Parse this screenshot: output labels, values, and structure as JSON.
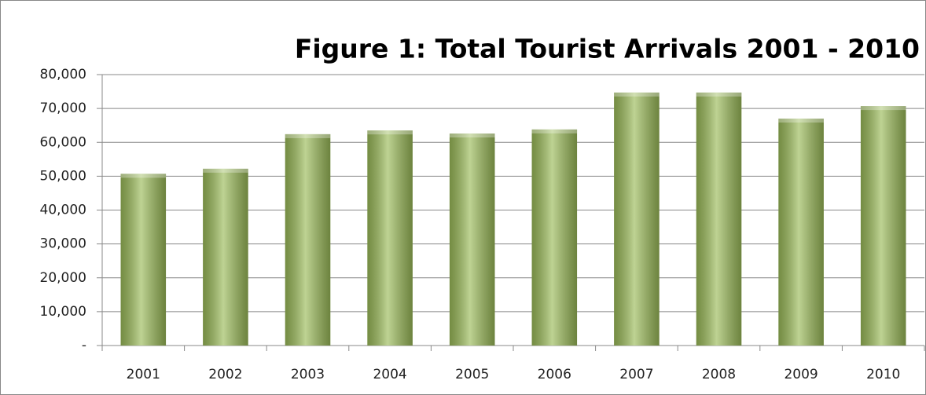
{
  "chart_data": {
    "type": "bar",
    "title": "Figure 1: Total Tourist Arrivals 2001 - 2010",
    "categories": [
      "2001",
      "2002",
      "2003",
      "2004",
      "2005",
      "2006",
      "2007",
      "2008",
      "2009",
      "2010"
    ],
    "values": [
      50700,
      52200,
      62400,
      63500,
      62600,
      63800,
      74700,
      74700,
      67000,
      70700
    ],
    "color": "#9bbb59",
    "ylim": [
      0,
      80000
    ],
    "yticks": [
      {
        "value": 0,
        "label": "-"
      },
      {
        "value": 10000,
        "label": "10,000"
      },
      {
        "value": 20000,
        "label": "20,000"
      },
      {
        "value": 30000,
        "label": "30,000"
      },
      {
        "value": 40000,
        "label": "40,000"
      },
      {
        "value": 50000,
        "label": "50,000"
      },
      {
        "value": 60000,
        "label": "60,000"
      },
      {
        "value": 70000,
        "label": "70,000"
      },
      {
        "value": 80000,
        "label": "80,000"
      }
    ],
    "grid": true
  }
}
